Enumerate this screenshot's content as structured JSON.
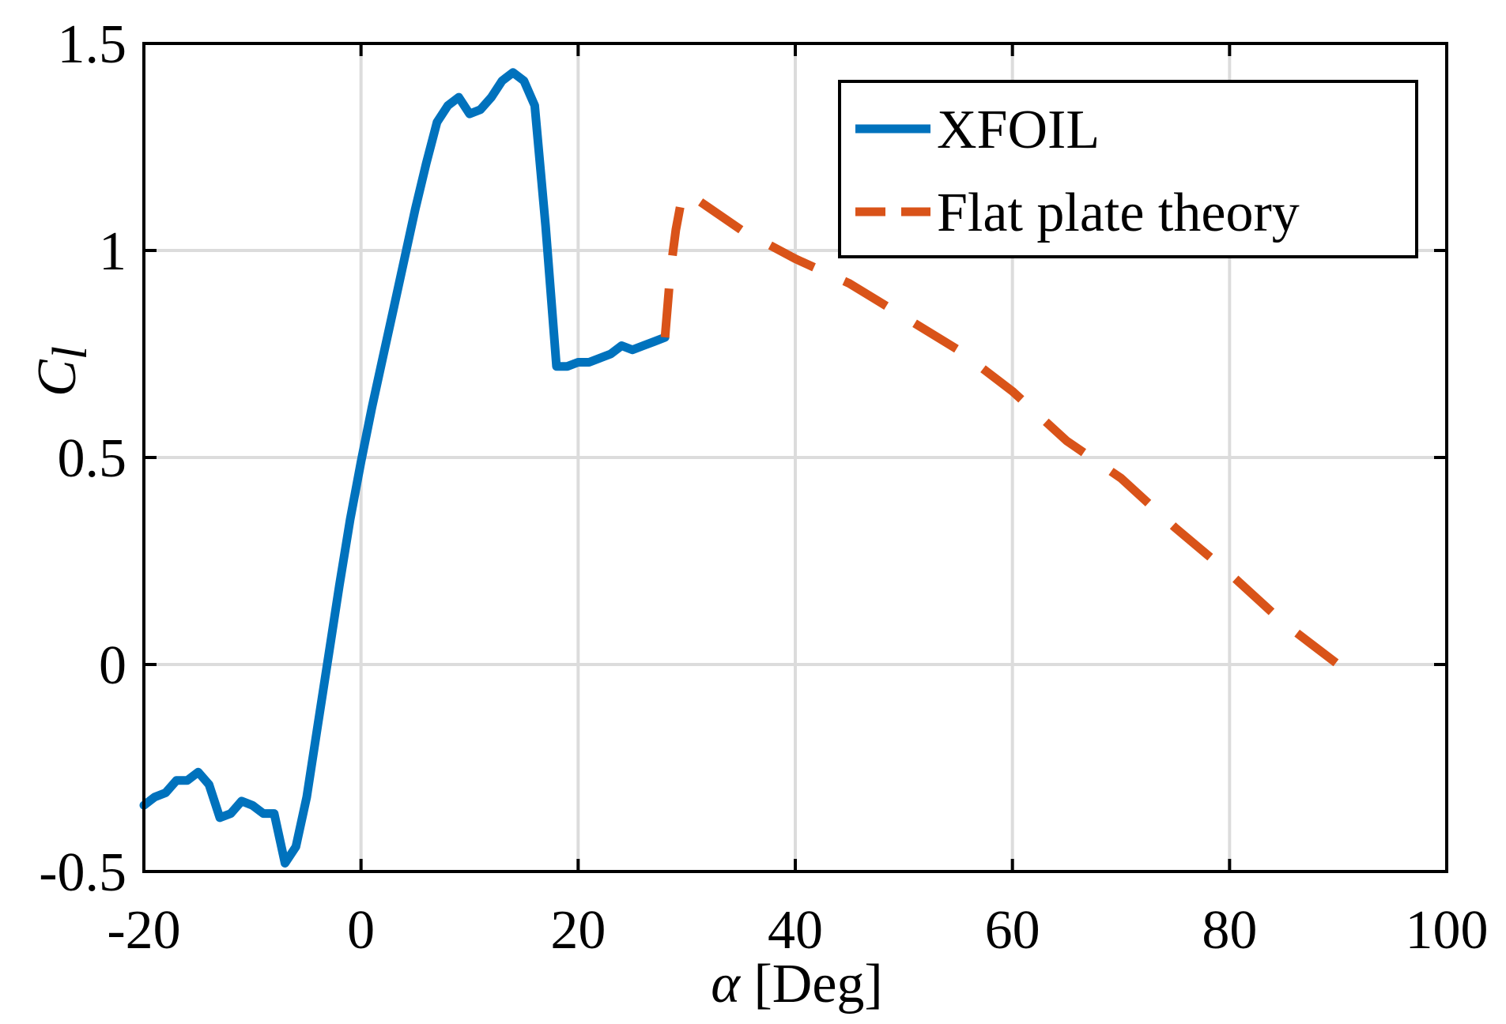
{
  "chart_data": {
    "type": "line",
    "title": "",
    "xlabel_symbol": "α",
    "xlabel_unit": "[Deg]",
    "ylabel_symbol": "C",
    "ylabel_subscript": "l",
    "xlim": [
      -20,
      100
    ],
    "ylim": [
      -0.5,
      1.5
    ],
    "x_ticks": [
      -20,
      0,
      20,
      40,
      60,
      80,
      100
    ],
    "y_ticks": [
      -0.5,
      0,
      0.5,
      1,
      1.5
    ],
    "x_tick_labels": [
      "-20",
      "0",
      "20",
      "40",
      "60",
      "80",
      "100"
    ],
    "y_tick_labels": [
      "-0.5",
      "0",
      "0.5",
      "1",
      "1.5"
    ],
    "grid": true,
    "legend_position": "top-right",
    "series": [
      {
        "name": "XFOIL",
        "color": "#0072BD",
        "style": "solid",
        "x": [
          -20,
          -19,
          -18,
          -17,
          -16,
          -15,
          -14,
          -13,
          -12,
          -11,
          -10,
          -9,
          -8,
          -7,
          -6,
          -5,
          -4,
          -3,
          -2,
          -1,
          0,
          1,
          2,
          3,
          4,
          5,
          6,
          7,
          8,
          9,
          10,
          11,
          12,
          13,
          14,
          15,
          16,
          17,
          18,
          19,
          20,
          21,
          22,
          23,
          24,
          25,
          26,
          27,
          28
        ],
        "y": [
          -0.34,
          -0.32,
          -0.31,
          -0.28,
          -0.28,
          -0.26,
          -0.29,
          -0.37,
          -0.36,
          -0.33,
          -0.34,
          -0.36,
          -0.36,
          -0.48,
          -0.44,
          -0.32,
          -0.15,
          0.02,
          0.19,
          0.35,
          0.49,
          0.62,
          0.74,
          0.86,
          0.98,
          1.1,
          1.21,
          1.31,
          1.35,
          1.37,
          1.33,
          1.34,
          1.37,
          1.41,
          1.43,
          1.41,
          1.35,
          1.06,
          0.72,
          0.72,
          0.73,
          0.73,
          0.74,
          0.75,
          0.77,
          0.76,
          0.77,
          0.78,
          0.79
        ]
      },
      {
        "name": "Flat plate theory",
        "color": "#D95319",
        "style": "dashed",
        "x": [
          28,
          28.5,
          29,
          29.5,
          30,
          35,
          40,
          45,
          50,
          55,
          60,
          65,
          70,
          75,
          80,
          85,
          90
        ],
        "y": [
          0.79,
          0.95,
          1.05,
          1.12,
          1.14,
          1.05,
          0.98,
          0.92,
          0.84,
          0.76,
          0.66,
          0.54,
          0.45,
          0.33,
          0.22,
          0.1,
          0.0
        ]
      }
    ]
  }
}
